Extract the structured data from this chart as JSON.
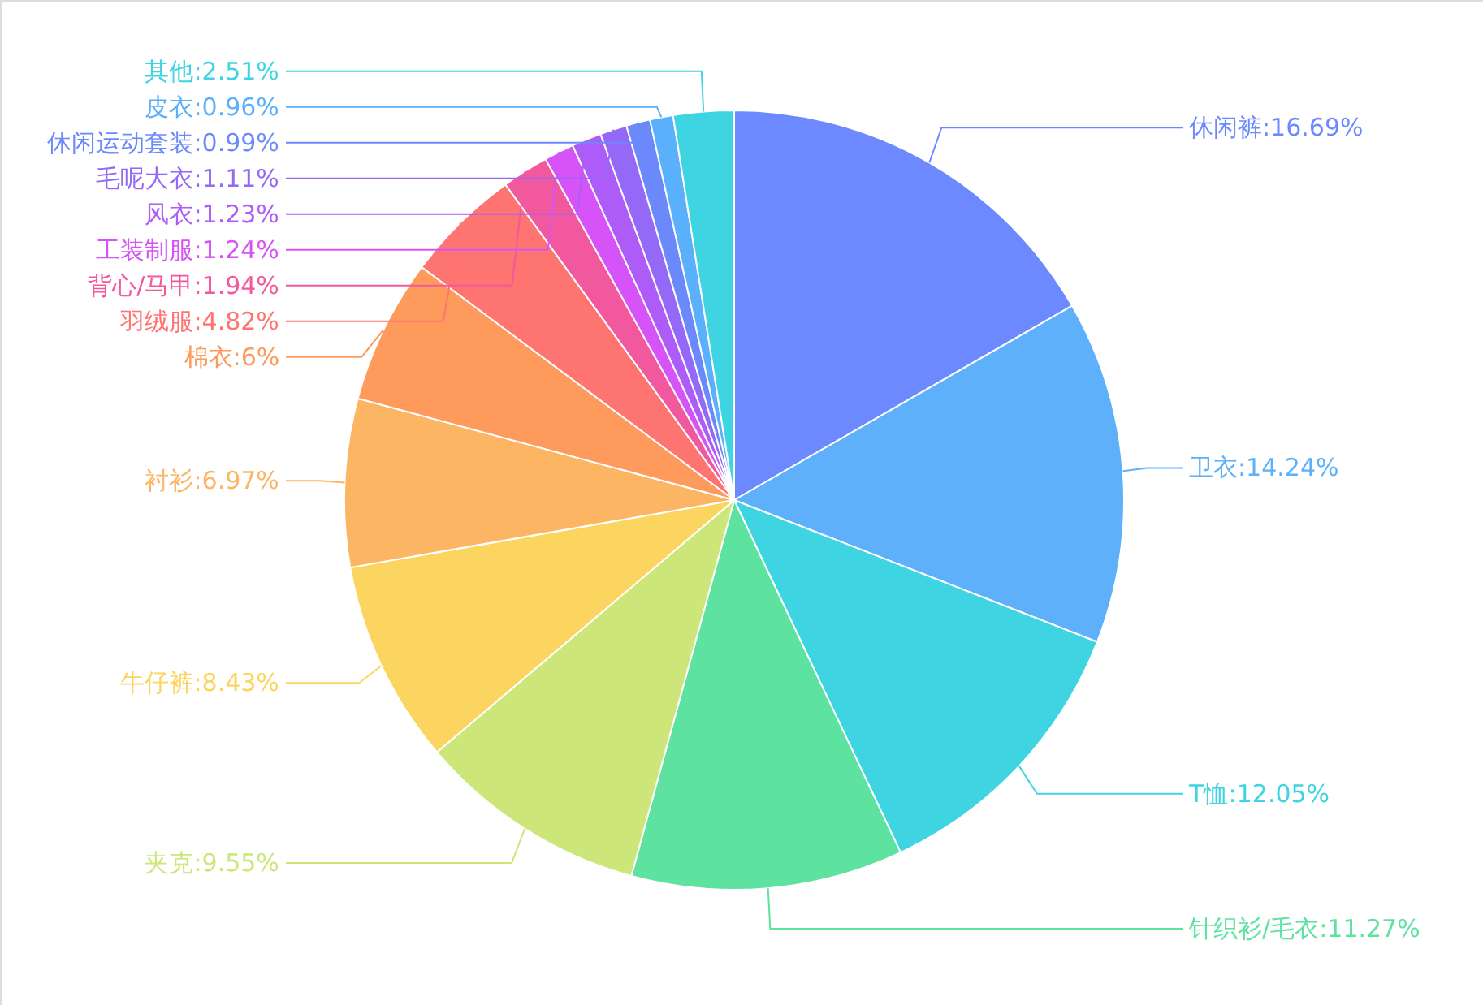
{
  "chart_data": {
    "type": "pie",
    "categories": [
      "休闲裤",
      "卫衣",
      "T恤",
      "针织衫/毛衣",
      "夹克",
      "牛仔裤",
      "衬衫",
      "棉衣",
      "羽绒服",
      "背心/马甲",
      "工装制服",
      "风衣",
      "毛呢大衣",
      "休闲运动套装",
      "皮衣",
      "其他"
    ],
    "values": [
      16.69,
      14.24,
      12.05,
      11.27,
      9.55,
      8.43,
      6.97,
      6,
      4.82,
      1.94,
      1.24,
      1.23,
      1.11,
      0.99,
      0.96,
      2.51
    ],
    "value_labels": [
      ":16.69%",
      ":14.24%",
      ":12.05%",
      ":11.27%",
      ":9.55%",
      ":8.43%",
      ":6.97%",
      ":6%",
      ":4.82%",
      ":1.94%",
      ":1.24%",
      ":1.23%",
      ":1.11%",
      ":0.99%",
      ":0.96%",
      ":2.51%"
    ],
    "colors": [
      "#6c89ff",
      "#5fb0fb",
      "#3fd4e2",
      "#5ee2a0",
      "#cce67a",
      "#fbd560",
      "#fbb563",
      "#fd9a5c",
      "#fe7470",
      "#f2589e",
      "#d654f7",
      "#ae5cf7",
      "#9569f7",
      "#6c89fb",
      "#5ab0fb",
      "#3fd4e2"
    ]
  }
}
